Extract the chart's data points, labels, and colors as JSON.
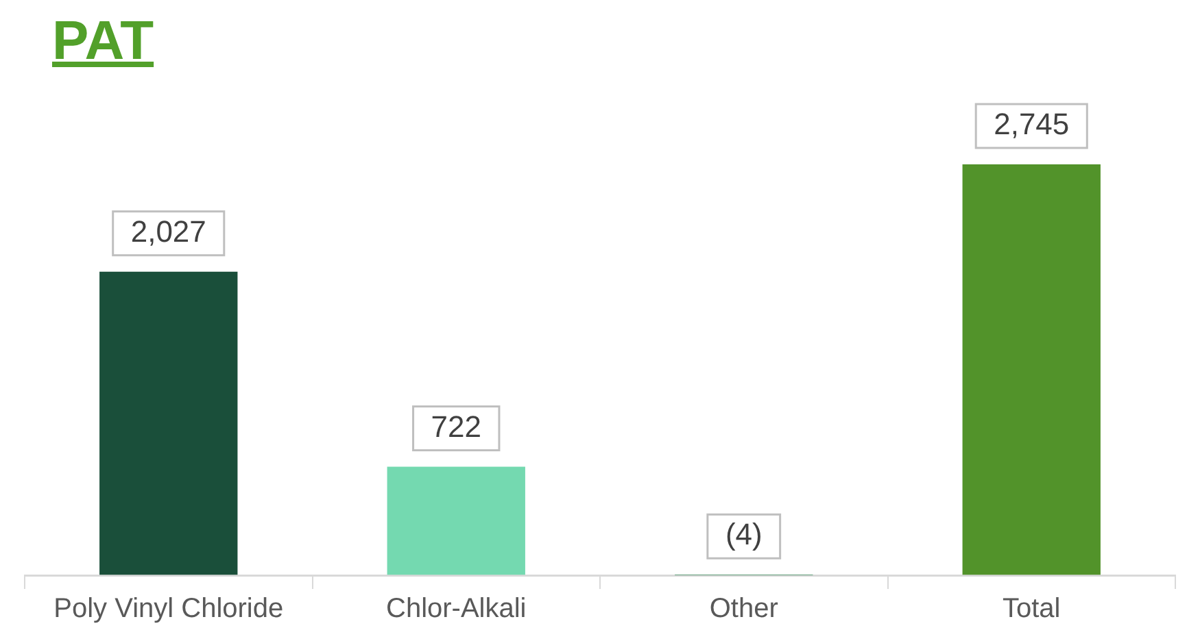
{
  "chart_data": {
    "type": "bar",
    "title": "PAT",
    "categories": [
      "Poly Vinyl Chloride",
      "Chlor-Alkali",
      "Other",
      "Total"
    ],
    "values": [
      2027,
      722,
      -4,
      2745
    ],
    "colors": [
      "#1a4f3a",
      "#74d9b0",
      "#3a8a5a",
      "#52932a"
    ],
    "value_labels": [
      "2,027",
      "722",
      "(4)",
      "2,745"
    ],
    "tick_labels": "x",
    "legend": false
  }
}
